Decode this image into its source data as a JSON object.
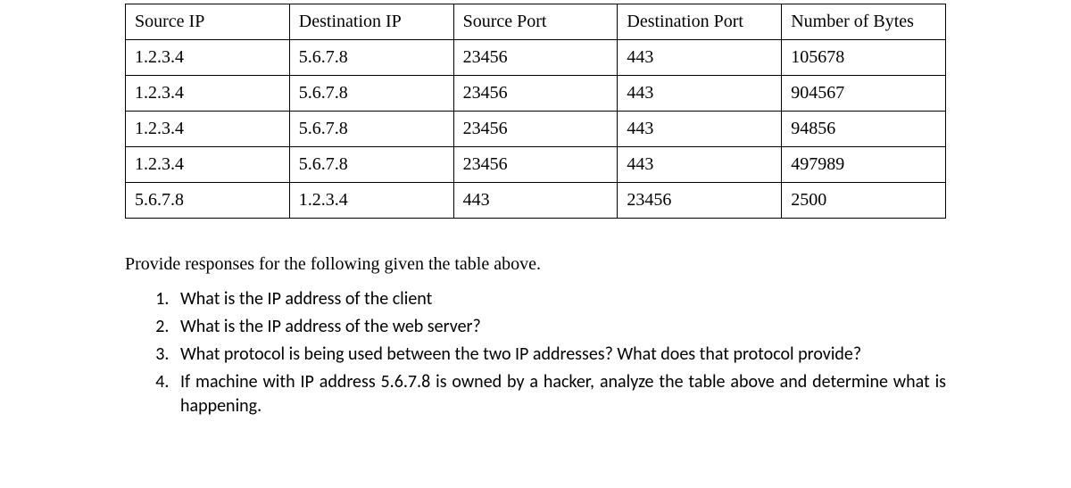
{
  "table": {
    "columns": [
      "Source IP",
      "Destination IP",
      "Source Port",
      "Destination Port",
      "Number of Bytes"
    ],
    "rows": [
      [
        "1.2.3.4",
        "5.6.7.8",
        "23456",
        "443",
        "105678"
      ],
      [
        "1.2.3.4",
        "5.6.7.8",
        "23456",
        "443",
        "904567"
      ],
      [
        "1.2.3.4",
        "5.6.7.8",
        "23456",
        "443",
        "94856"
      ],
      [
        "1.2.3.4",
        "5.6.7.8",
        "23456",
        "443",
        "497989"
      ],
      [
        "5.6.7.8",
        "1.2.3.4",
        "443",
        "23456",
        "2500"
      ]
    ],
    "border_color": "#000000",
    "cell_font_family": "Times New Roman",
    "cell_font_size": 20
  },
  "prompt": "Provide responses for the following given the table above.",
  "questions": [
    "What is the IP address of the client",
    "What is the IP address of the web server?",
    "What protocol is being used between the two IP addresses?  What does that protocol provide?",
    "If machine with IP address 5.6.7.8 is owned by a hacker, analyze the table above and determine what is happening."
  ],
  "question_font_family": "Calibri",
  "question_font_size": 20,
  "background_color": "#ffffff"
}
